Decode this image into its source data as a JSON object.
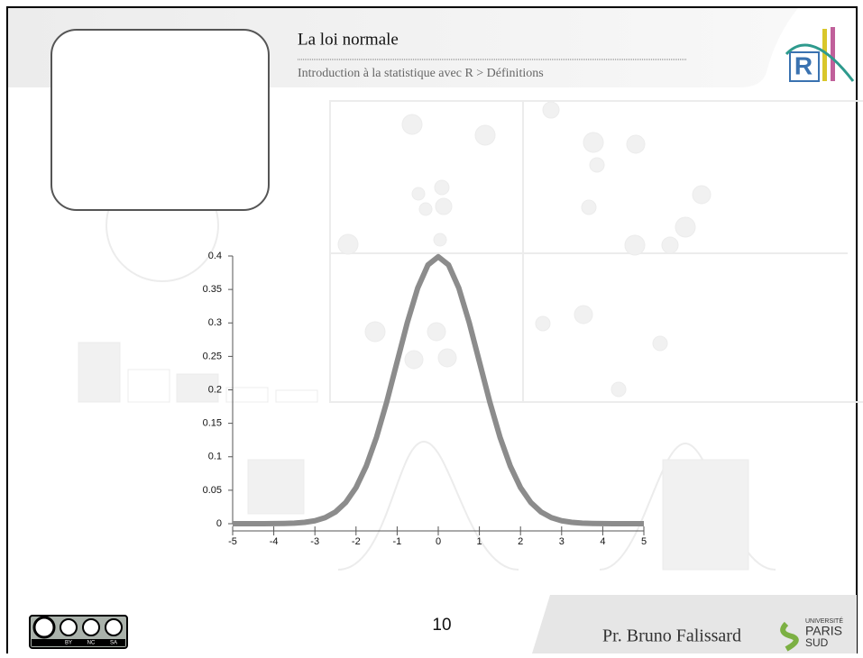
{
  "header": {
    "title": "La loi normale",
    "subtitle": "Introduction à la statistique avec R > Définitions",
    "logo": "R"
  },
  "chart_data": {
    "type": "line",
    "x": [
      -5,
      -4.75,
      -4.5,
      -4.25,
      -4,
      -3.75,
      -3.5,
      -3.25,
      -3,
      -2.75,
      -2.5,
      -2.25,
      -2,
      -1.75,
      -1.5,
      -1.25,
      -1,
      -0.75,
      -0.5,
      -0.25,
      0,
      0.25,
      0.5,
      0.75,
      1,
      1.25,
      1.5,
      1.75,
      2,
      2.25,
      2.5,
      2.75,
      3,
      3.25,
      3.5,
      3.75,
      4,
      4.25,
      4.5,
      4.75,
      5
    ],
    "values": [
      0,
      0,
      0,
      0,
      0.0001,
      0.0004,
      0.0009,
      0.002,
      0.0044,
      0.0091,
      0.0175,
      0.0317,
      0.054,
      0.0863,
      0.1295,
      0.1826,
      0.242,
      0.3011,
      0.3521,
      0.3867,
      0.3989,
      0.3867,
      0.3521,
      0.3011,
      0.242,
      0.1826,
      0.1295,
      0.0863,
      0.054,
      0.0317,
      0.0175,
      0.0091,
      0.0044,
      0.002,
      0.0009,
      0.0004,
      0.0001,
      0,
      0,
      0,
      0
    ],
    "color": "#8c8c8c",
    "xlim": [
      -5,
      5
    ],
    "xticks": [
      -5,
      -4,
      -3,
      -2,
      -1,
      0,
      1,
      2,
      3,
      4,
      5
    ],
    "ylim": [
      0,
      0.4
    ],
    "yticks": [
      0,
      0.05,
      0.1,
      0.15,
      0.2,
      0.25,
      0.3,
      0.35,
      0.4
    ]
  },
  "footer": {
    "page": "10",
    "author": "Pr. Bruno Falissard",
    "license": [
      "BY",
      "NC",
      "SA"
    ],
    "university": [
      "UNIVERSITÉ",
      "PARIS",
      "SUD"
    ]
  }
}
